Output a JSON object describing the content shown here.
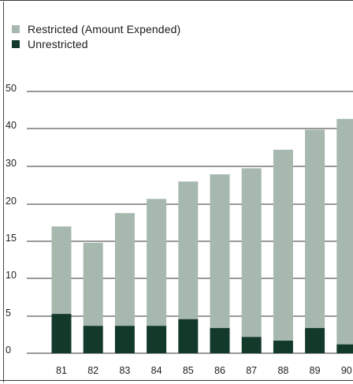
{
  "colors": {
    "restricted": "#a7b8ae",
    "unrestricted": "#13392b",
    "gridline": "#333333",
    "text": "#222222"
  },
  "chart_data": {
    "type": "bar",
    "stacked": true,
    "title": "",
    "xlabel": "",
    "ylabel": "",
    "categories": [
      "81",
      "82",
      "83",
      "84",
      "85",
      "86",
      "87",
      "88",
      "89",
      "90"
    ],
    "series": [
      {
        "name": "Unrestricted",
        "values": [
          5.3,
          3.7,
          3.7,
          3.7,
          4.6,
          3.4,
          2.2,
          1.7,
          3.4,
          1.2
        ]
      },
      {
        "name": "Restricted (Amount Expended)",
        "values": [
          11.7,
          11.1,
          15.1,
          17.7,
          21.4,
          24.5,
          27.3,
          32.7,
          36.3,
          41.4
        ]
      }
    ],
    "y_tick_labels": [
      "0",
      "5",
      "10",
      "15",
      "20",
      "30",
      "40",
      "50"
    ],
    "legend_position": "top-left",
    "grid": "horizontal"
  }
}
